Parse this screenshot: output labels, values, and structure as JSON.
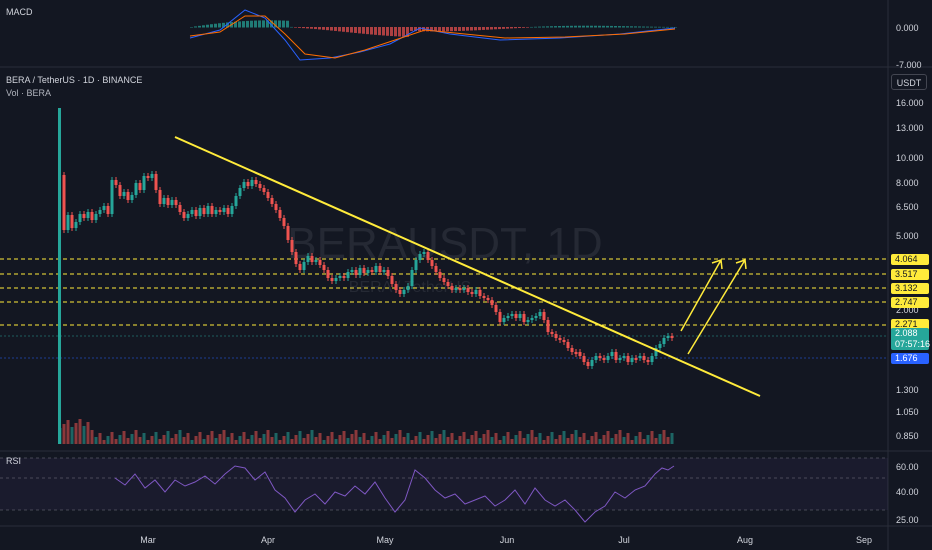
{
  "macd_panel": {
    "label": "MACD",
    "ticks": [
      "0.000",
      "-7.000"
    ]
  },
  "main_panel": {
    "symbol_info": "BERA / TetherUS · 1D · BINANCE",
    "volume_info": "Vol · BERA",
    "watermark": "BERAUSDT, 1D",
    "watermark_sub": "BERA / TetherUS",
    "unit_button": "USDT",
    "price_ticks": [
      "16.000",
      "13.000",
      "10.000",
      "8.000",
      "6.500",
      "5.000",
      "2.000",
      "1.300",
      "1.050",
      "0.850"
    ],
    "levels": [
      {
        "label": "4.064",
        "bg": "#ffeb3b",
        "fg": "#131722"
      },
      {
        "label": "3.517",
        "bg": "#ffeb3b",
        "fg": "#131722"
      },
      {
        "label": "3.132",
        "bg": "#ffeb3b",
        "fg": "#131722"
      },
      {
        "label": "2.747",
        "bg": "#ffeb3b",
        "fg": "#131722"
      },
      {
        "label": "2.271",
        "bg": "#ffeb3b",
        "fg": "#131722"
      }
    ],
    "current_price": {
      "value": "2.088",
      "countdown": "07:57:16",
      "color": "#26a69a"
    },
    "low_price": {
      "value": "1.676",
      "color": "#2962ff"
    }
  },
  "rsi_panel": {
    "label": "RSI",
    "ticks": [
      "60.00",
      "40.00",
      "25.00"
    ]
  },
  "time_axis": [
    "Mar",
    "Apr",
    "May",
    "Jun",
    "Jul",
    "Aug",
    "Sep"
  ],
  "colors": {
    "up": "#26a69a",
    "down": "#ef5350",
    "trend": "#ffeb3b",
    "rsi": "#7e57c2",
    "background": "#131722"
  }
}
